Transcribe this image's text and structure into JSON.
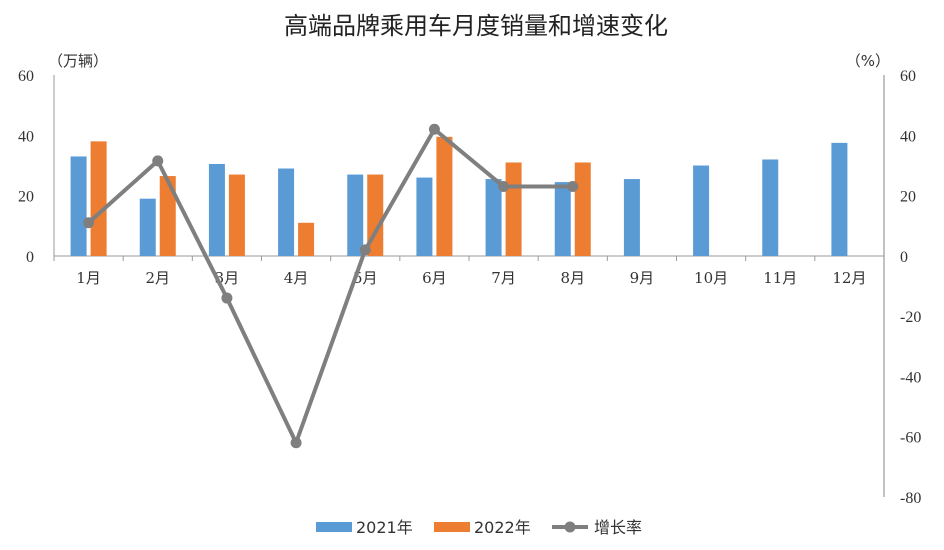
{
  "chart_data": {
    "type": "bar",
    "title": "高端品牌乘用车月度销量和增速变化",
    "categories": [
      "1月",
      "2月",
      "3月",
      "4月",
      "5月",
      "6月",
      "7月",
      "8月",
      "9月",
      "10月",
      "11月",
      "12月"
    ],
    "series": [
      {
        "name": "2021年",
        "type": "bar",
        "axis": "left",
        "color": "#5B9BD5",
        "values": [
          33,
          19,
          30.5,
          29,
          27,
          26,
          25.5,
          24.5,
          25.5,
          30,
          32,
          37.5
        ]
      },
      {
        "name": "2022年",
        "type": "bar",
        "axis": "left",
        "color": "#ED7D31",
        "values": [
          38,
          26.5,
          27,
          11,
          27,
          39.5,
          31,
          31,
          null,
          null,
          null,
          null
        ]
      },
      {
        "name": "增长率",
        "type": "line",
        "axis": "right",
        "color": "#7F7F7F",
        "values": [
          11,
          31.5,
          -14,
          -62,
          2,
          42,
          23,
          23,
          null,
          null,
          null,
          null
        ]
      }
    ],
    "left_axis": {
      "unit_label": "（万辆）",
      "ylim": [
        0,
        60
      ],
      "ticks": [
        "60",
        "40",
        "20",
        "0"
      ]
    },
    "right_axis": {
      "unit_label": "（%）",
      "ylim": [
        -80,
        60
      ],
      "ticks": [
        "60",
        "40",
        "20",
        "0",
        "-20",
        "-40",
        "-60",
        "-80"
      ],
      "negative_tick_color": "#FF0000"
    },
    "legend": {
      "position": "bottom"
    },
    "grid": false
  }
}
